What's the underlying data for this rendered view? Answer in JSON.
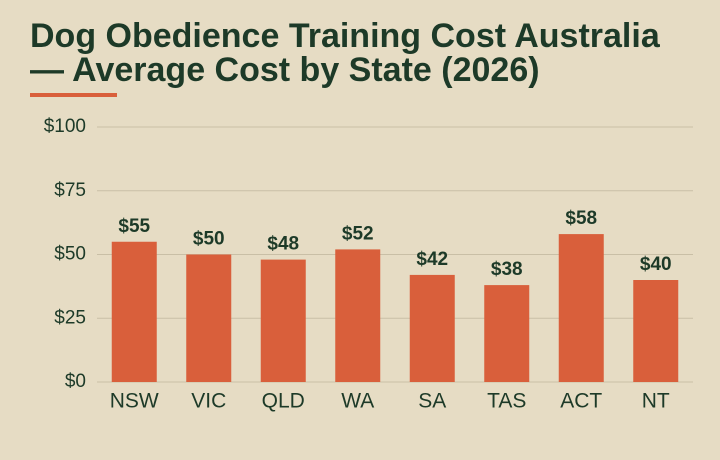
{
  "chart_data": {
    "type": "bar",
    "title": "Dog Obedience Training Cost Australia — Average Cost by State (2026)",
    "categories": [
      "NSW",
      "VIC",
      "QLD",
      "WA",
      "SA",
      "TAS",
      "ACT",
      "NT"
    ],
    "values": [
      55,
      50,
      48,
      52,
      42,
      38,
      58,
      40
    ],
    "value_labels": [
      "$55",
      "$50",
      "$48",
      "$52",
      "$42",
      "$38",
      "$58",
      "$40"
    ],
    "color": "#d95f3b",
    "ylim": [
      0,
      100
    ],
    "yticks": [
      {
        "value": 0,
        "label": "$0"
      },
      {
        "value": 25,
        "label": "$25"
      },
      {
        "value": 50,
        "label": "$50"
      },
      {
        "value": 75,
        "label": "$75"
      },
      {
        "value": 100,
        "label": "$100"
      }
    ],
    "grid": true
  }
}
